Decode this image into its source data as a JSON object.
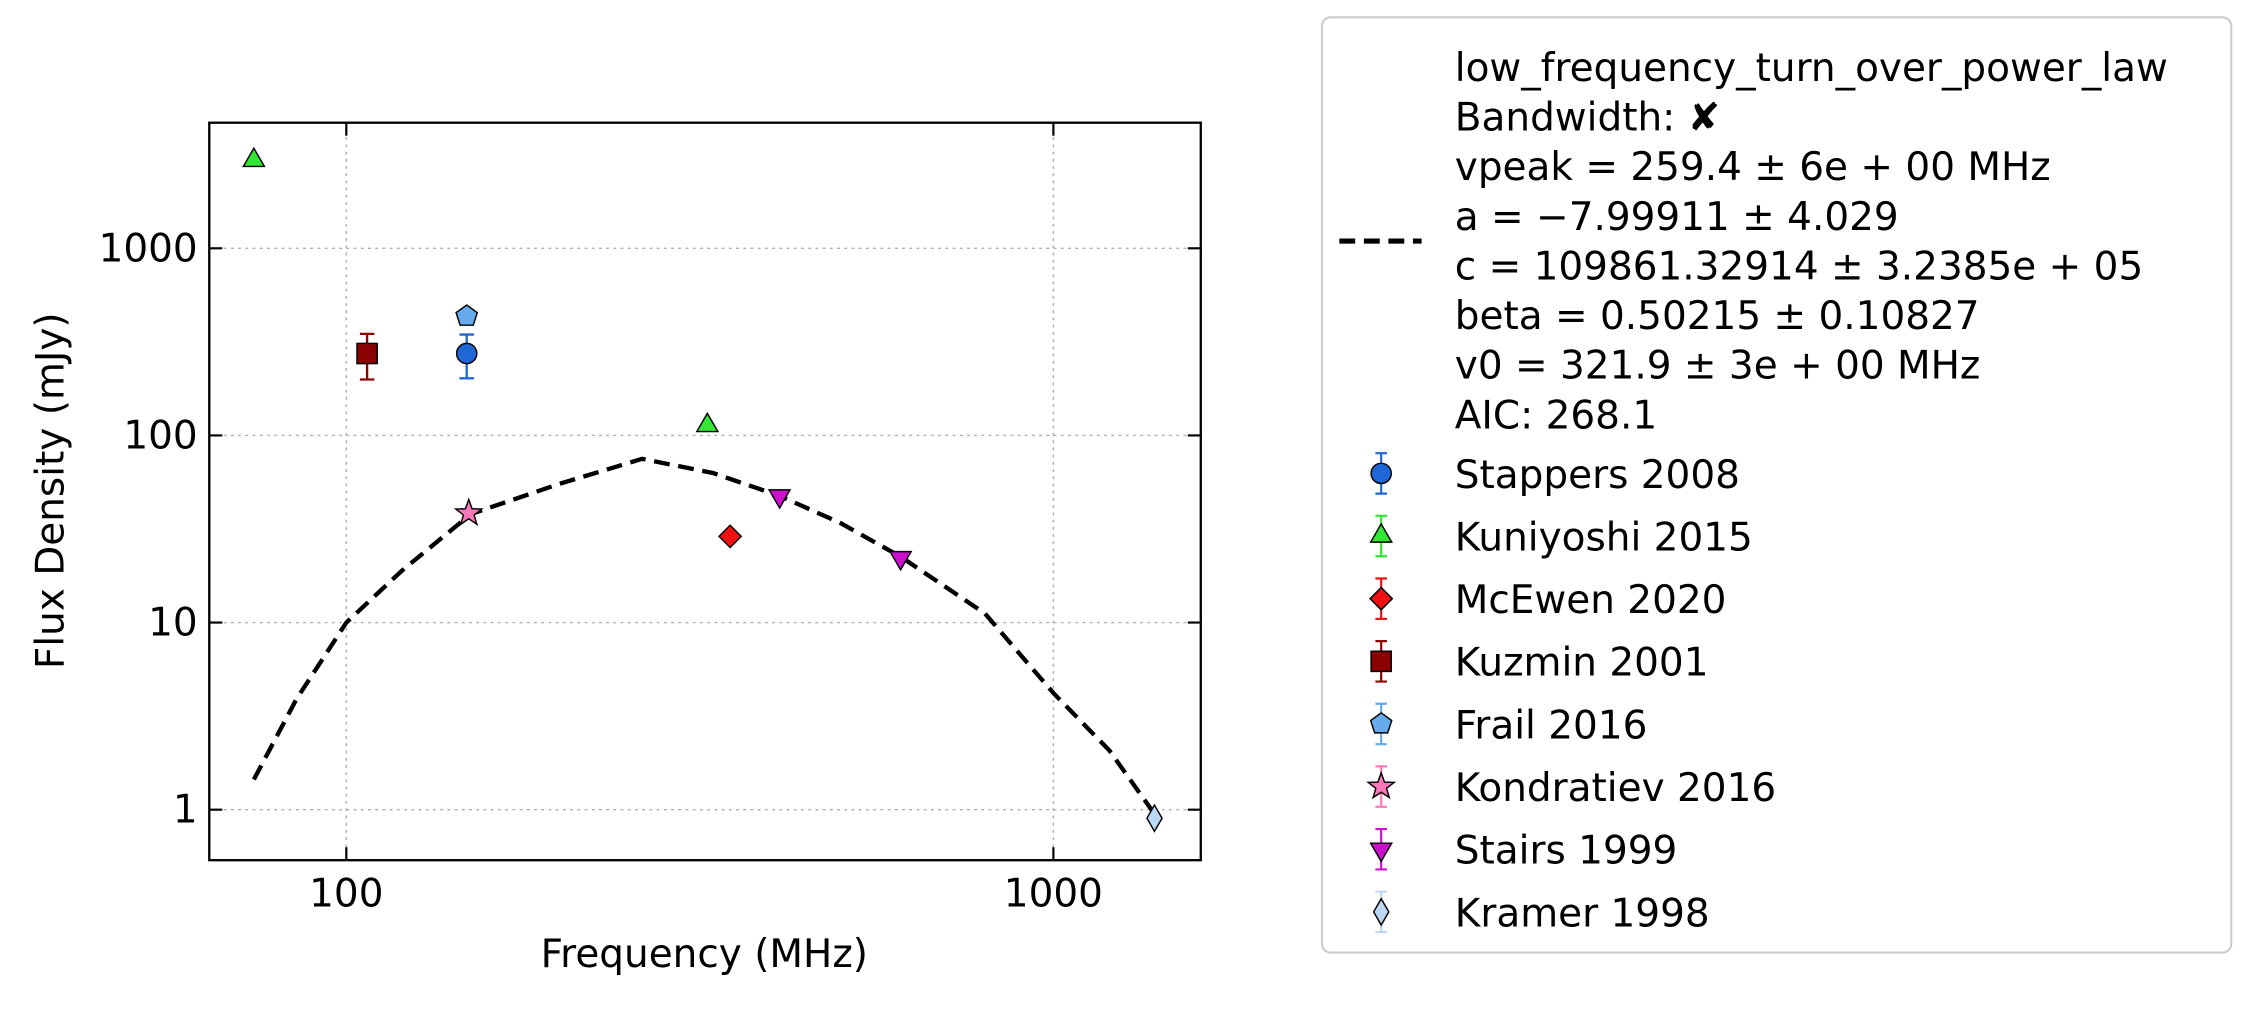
{
  "chart_data": {
    "type": "scatter",
    "xlabel": "Frequency (MHz)",
    "ylabel": "Flux Density (mJy)",
    "xscale": "log",
    "yscale": "log",
    "grid": true,
    "xlim": [
      64,
      1616
    ],
    "ylim": [
      0.537,
      4690
    ],
    "xticks": [
      100,
      1000
    ],
    "yticks": [
      1,
      10,
      100,
      1000
    ],
    "fit": {
      "legend_lines": [
        "low_frequency_turn_over_power_law",
        "Bandwidth: ✘",
        "vpeak = 259.4 ± 6e + 00 MHz",
        "a = −7.99911 ± 4.029",
        "c = 109861.32914 ± 3.2385e + 05",
        "beta = 0.50215 ± 0.10827",
        "v0 = 321.9 ± 3e + 00 MHz",
        "AIC: 268.1"
      ],
      "color": "#000000",
      "x": [
        74,
        85,
        100,
        120,
        150,
        200,
        262,
        330,
        410,
        500,
        608,
        800,
        1000,
        1200,
        1390
      ],
      "y": [
        1.45,
        3.9,
        10,
        19,
        38,
        55,
        75,
        63,
        47.5,
        34,
        22.5,
        11.2,
        4.2,
        2.07,
        0.95
      ]
    },
    "series": [
      {
        "name": "Stappers 2008",
        "color": "#1f66d6",
        "marker": "circle",
        "x": [
          148
        ],
        "y": [
          274
        ],
        "yerr": [
          72
        ]
      },
      {
        "name": "Kuniyoshi 2015",
        "color": "#33e633",
        "marker": "triangle-up",
        "x": [
          74,
          324
        ],
        "y": [
          2950,
          113
        ]
      },
      {
        "name": "McEwen 2020",
        "color": "#ee1111",
        "marker": "diamond",
        "x": [
          349
        ],
        "y": [
          28.9
        ]
      },
      {
        "name": "Kuzmin 2001",
        "color": "#8b0000",
        "marker": "square",
        "x": [
          107
        ],
        "y": [
          274
        ],
        "yerr": [
          75
        ]
      },
      {
        "name": "Frail 2016",
        "color": "#66aaee",
        "marker": "pentagon",
        "x": [
          148
        ],
        "y": [
          434
        ]
      },
      {
        "name": "Kondratiev 2016",
        "color": "#ff77bb",
        "marker": "star",
        "x": [
          149
        ],
        "y": [
          38.4
        ]
      },
      {
        "name": "Stairs 1999",
        "color": "#cc11cc",
        "marker": "triangle-down",
        "x": [
          410,
          608
        ],
        "y": [
          47.5,
          22.2
        ]
      },
      {
        "name": "Kramer 1998",
        "color": "#bbd8f5",
        "marker": "thin-diamond",
        "x": [
          1390
        ],
        "y": [
          0.9
        ]
      }
    ]
  }
}
